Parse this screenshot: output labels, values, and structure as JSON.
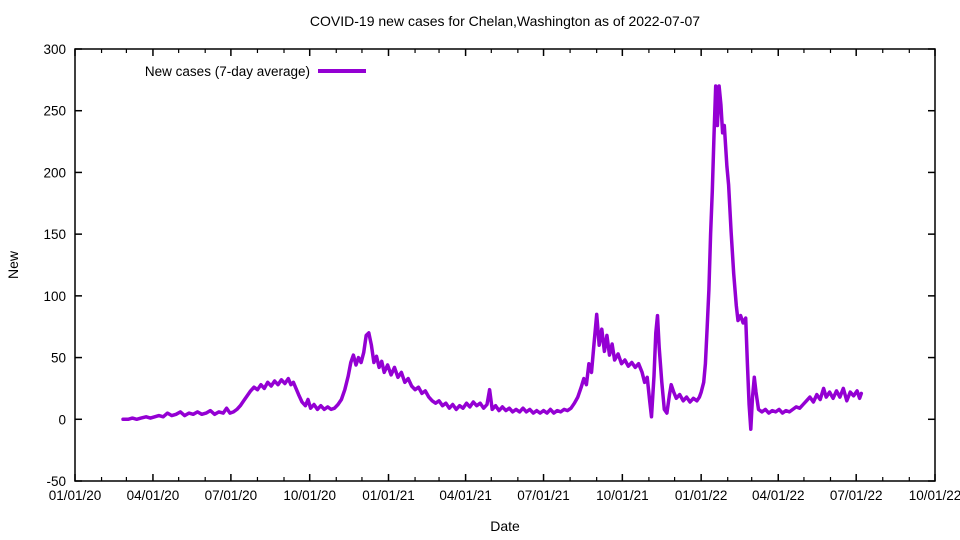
{
  "window": {
    "background": "#ffffff"
  },
  "chart_data": {
    "type": "line",
    "title": "COVID-19 new cases for Chelan,Washington as of 2022-07-07",
    "xlabel": "Date",
    "ylabel": "New",
    "ylim": [
      -50,
      300
    ],
    "y_ticks": [
      -50,
      0,
      50,
      100,
      150,
      200,
      250,
      300
    ],
    "x_axis": {
      "start": "2020-01-01",
      "end": "2022-10-01",
      "major_ticks": [
        {
          "date": "2020-01-01",
          "label": "01/01/20"
        },
        {
          "date": "2020-04-01",
          "label": "04/01/20"
        },
        {
          "date": "2020-07-01",
          "label": "07/01/20"
        },
        {
          "date": "2020-10-01",
          "label": "10/01/20"
        },
        {
          "date": "2021-01-01",
          "label": "01/01/21"
        },
        {
          "date": "2021-04-01",
          "label": "04/01/21"
        },
        {
          "date": "2021-07-01",
          "label": "07/01/21"
        },
        {
          "date": "2021-10-01",
          "label": "10/01/21"
        },
        {
          "date": "2022-01-01",
          "label": "01/01/22"
        },
        {
          "date": "2022-04-01",
          "label": "04/01/22"
        },
        {
          "date": "2022-07-01",
          "label": "07/01/22"
        },
        {
          "date": "2022-10-01",
          "label": "10/01/22"
        }
      ],
      "minor_tick_interval": "month"
    },
    "grid": false,
    "legend": {
      "label": "New cases (7-day average)",
      "position": "top-left-inside"
    },
    "colors": {
      "series": "#9400D3",
      "axis": "#000000",
      "text": "#000000",
      "background": "#ffffff"
    },
    "series": [
      {
        "name": "New cases (7-day average)",
        "color": "#9400D3",
        "points": [
          [
            "2020-02-26",
            0
          ],
          [
            "2020-03-03",
            0
          ],
          [
            "2020-03-08",
            1
          ],
          [
            "2020-03-13",
            0
          ],
          [
            "2020-03-18",
            1
          ],
          [
            "2020-03-24",
            2
          ],
          [
            "2020-03-29",
            1
          ],
          [
            "2020-04-03",
            2
          ],
          [
            "2020-04-08",
            3
          ],
          [
            "2020-04-13",
            2
          ],
          [
            "2020-04-18",
            5
          ],
          [
            "2020-04-23",
            3
          ],
          [
            "2020-04-28",
            4
          ],
          [
            "2020-05-03",
            6
          ],
          [
            "2020-05-08",
            3
          ],
          [
            "2020-05-13",
            5
          ],
          [
            "2020-05-18",
            4
          ],
          [
            "2020-05-23",
            6
          ],
          [
            "2020-05-28",
            4
          ],
          [
            "2020-06-02",
            5
          ],
          [
            "2020-06-07",
            7
          ],
          [
            "2020-06-12",
            4
          ],
          [
            "2020-06-17",
            6
          ],
          [
            "2020-06-22",
            5
          ],
          [
            "2020-06-26",
            9
          ],
          [
            "2020-06-30",
            5
          ],
          [
            "2020-07-04",
            6
          ],
          [
            "2020-07-08",
            8
          ],
          [
            "2020-07-12",
            11
          ],
          [
            "2020-07-16",
            15
          ],
          [
            "2020-07-20",
            19
          ],
          [
            "2020-07-24",
            23
          ],
          [
            "2020-07-28",
            26
          ],
          [
            "2020-08-01",
            24
          ],
          [
            "2020-08-05",
            28
          ],
          [
            "2020-08-09",
            25
          ],
          [
            "2020-08-13",
            30
          ],
          [
            "2020-08-17",
            27
          ],
          [
            "2020-08-21",
            31
          ],
          [
            "2020-08-25",
            28
          ],
          [
            "2020-08-29",
            32
          ],
          [
            "2020-09-02",
            29
          ],
          [
            "2020-09-06",
            33
          ],
          [
            "2020-09-09",
            28
          ],
          [
            "2020-09-12",
            30
          ],
          [
            "2020-09-15",
            25
          ],
          [
            "2020-09-18",
            20
          ],
          [
            "2020-09-22",
            14
          ],
          [
            "2020-09-26",
            11
          ],
          [
            "2020-09-29",
            16
          ],
          [
            "2020-10-02",
            9
          ],
          [
            "2020-10-06",
            12
          ],
          [
            "2020-10-10",
            8
          ],
          [
            "2020-10-14",
            11
          ],
          [
            "2020-10-18",
            8
          ],
          [
            "2020-10-22",
            10
          ],
          [
            "2020-10-26",
            8
          ],
          [
            "2020-10-30",
            9
          ],
          [
            "2020-11-03",
            12
          ],
          [
            "2020-11-07",
            16
          ],
          [
            "2020-11-11",
            24
          ],
          [
            "2020-11-15",
            35
          ],
          [
            "2020-11-18",
            46
          ],
          [
            "2020-11-21",
            52
          ],
          [
            "2020-11-24",
            44
          ],
          [
            "2020-11-27",
            50
          ],
          [
            "2020-11-30",
            46
          ],
          [
            "2020-12-03",
            54
          ],
          [
            "2020-12-06",
            68
          ],
          [
            "2020-12-09",
            70
          ],
          [
            "2020-12-12",
            60
          ],
          [
            "2020-12-15",
            46
          ],
          [
            "2020-12-18",
            51
          ],
          [
            "2020-12-21",
            42
          ],
          [
            "2020-12-24",
            47
          ],
          [
            "2020-12-27",
            38
          ],
          [
            "2020-12-31",
            44
          ],
          [
            "2021-01-04",
            36
          ],
          [
            "2021-01-08",
            42
          ],
          [
            "2021-01-12",
            34
          ],
          [
            "2021-01-16",
            38
          ],
          [
            "2021-01-20",
            30
          ],
          [
            "2021-01-24",
            33
          ],
          [
            "2021-01-28",
            27
          ],
          [
            "2021-02-01",
            24
          ],
          [
            "2021-02-05",
            26
          ],
          [
            "2021-02-09",
            21
          ],
          [
            "2021-02-13",
            23
          ],
          [
            "2021-02-17",
            18
          ],
          [
            "2021-02-21",
            15
          ],
          [
            "2021-02-25",
            13
          ],
          [
            "2021-03-01",
            15
          ],
          [
            "2021-03-05",
            11
          ],
          [
            "2021-03-09",
            13
          ],
          [
            "2021-03-13",
            9
          ],
          [
            "2021-03-17",
            12
          ],
          [
            "2021-03-21",
            8
          ],
          [
            "2021-03-25",
            11
          ],
          [
            "2021-03-29",
            9
          ],
          [
            "2021-04-02",
            13
          ],
          [
            "2021-04-06",
            10
          ],
          [
            "2021-04-10",
            14
          ],
          [
            "2021-04-14",
            11
          ],
          [
            "2021-04-18",
            13
          ],
          [
            "2021-04-22",
            9
          ],
          [
            "2021-04-26",
            12
          ],
          [
            "2021-04-29",
            24
          ],
          [
            "2021-05-02",
            8
          ],
          [
            "2021-05-06",
            11
          ],
          [
            "2021-05-10",
            7
          ],
          [
            "2021-05-14",
            10
          ],
          [
            "2021-05-18",
            7
          ],
          [
            "2021-05-22",
            9
          ],
          [
            "2021-05-26",
            6
          ],
          [
            "2021-05-30",
            8
          ],
          [
            "2021-06-03",
            6
          ],
          [
            "2021-06-07",
            9
          ],
          [
            "2021-06-11",
            6
          ],
          [
            "2021-06-15",
            8
          ],
          [
            "2021-06-19",
            5
          ],
          [
            "2021-06-23",
            7
          ],
          [
            "2021-06-27",
            5
          ],
          [
            "2021-07-01",
            7
          ],
          [
            "2021-07-05",
            5
          ],
          [
            "2021-07-09",
            8
          ],
          [
            "2021-07-13",
            5
          ],
          [
            "2021-07-17",
            7
          ],
          [
            "2021-07-21",
            6
          ],
          [
            "2021-07-25",
            8
          ],
          [
            "2021-07-29",
            7
          ],
          [
            "2021-08-02",
            9
          ],
          [
            "2021-08-06",
            13
          ],
          [
            "2021-08-10",
            18
          ],
          [
            "2021-08-14",
            26
          ],
          [
            "2021-08-17",
            33
          ],
          [
            "2021-08-20",
            28
          ],
          [
            "2021-08-23",
            45
          ],
          [
            "2021-08-26",
            38
          ],
          [
            "2021-08-29",
            62
          ],
          [
            "2021-09-01",
            85
          ],
          [
            "2021-09-04",
            60
          ],
          [
            "2021-09-07",
            73
          ],
          [
            "2021-09-10",
            55
          ],
          [
            "2021-09-13",
            68
          ],
          [
            "2021-09-16",
            52
          ],
          [
            "2021-09-19",
            61
          ],
          [
            "2021-09-22",
            48
          ],
          [
            "2021-09-26",
            53
          ],
          [
            "2021-09-30",
            45
          ],
          [
            "2021-10-04",
            48
          ],
          [
            "2021-10-08",
            43
          ],
          [
            "2021-10-12",
            46
          ],
          [
            "2021-10-16",
            42
          ],
          [
            "2021-10-20",
            45
          ],
          [
            "2021-10-24",
            38
          ],
          [
            "2021-10-27",
            30
          ],
          [
            "2021-10-30",
            34
          ],
          [
            "2021-11-02",
            14
          ],
          [
            "2021-11-04",
            2
          ],
          [
            "2021-11-07",
            35
          ],
          [
            "2021-11-09",
            70
          ],
          [
            "2021-11-11",
            84
          ],
          [
            "2021-11-13",
            58
          ],
          [
            "2021-11-16",
            30
          ],
          [
            "2021-11-19",
            8
          ],
          [
            "2021-11-22",
            5
          ],
          [
            "2021-11-25",
            20
          ],
          [
            "2021-11-27",
            28
          ],
          [
            "2021-11-30",
            22
          ],
          [
            "2021-12-03",
            17
          ],
          [
            "2021-12-07",
            20
          ],
          [
            "2021-12-11",
            15
          ],
          [
            "2021-12-15",
            18
          ],
          [
            "2021-12-19",
            14
          ],
          [
            "2021-12-23",
            17
          ],
          [
            "2021-12-27",
            15
          ],
          [
            "2021-12-30",
            18
          ],
          [
            "2022-01-01",
            22
          ],
          [
            "2022-01-04",
            30
          ],
          [
            "2022-01-06",
            45
          ],
          [
            "2022-01-08",
            75
          ],
          [
            "2022-01-10",
            105
          ],
          [
            "2022-01-12",
            150
          ],
          [
            "2022-01-14",
            185
          ],
          [
            "2022-01-16",
            230
          ],
          [
            "2022-01-18",
            270
          ],
          [
            "2022-01-20",
            238
          ],
          [
            "2022-01-22",
            270
          ],
          [
            "2022-01-24",
            255
          ],
          [
            "2022-01-26",
            232
          ],
          [
            "2022-01-28",
            238
          ],
          [
            "2022-01-31",
            205
          ],
          [
            "2022-02-02",
            190
          ],
          [
            "2022-02-05",
            152
          ],
          [
            "2022-02-08",
            118
          ],
          [
            "2022-02-11",
            92
          ],
          [
            "2022-02-13",
            80
          ],
          [
            "2022-02-16",
            84
          ],
          [
            "2022-02-19",
            78
          ],
          [
            "2022-02-22",
            82
          ],
          [
            "2022-02-24",
            45
          ],
          [
            "2022-02-26",
            12
          ],
          [
            "2022-02-28",
            -8
          ],
          [
            "2022-03-02",
            18
          ],
          [
            "2022-03-04",
            34
          ],
          [
            "2022-03-06",
            22
          ],
          [
            "2022-03-09",
            8
          ],
          [
            "2022-03-13",
            6
          ],
          [
            "2022-03-17",
            8
          ],
          [
            "2022-03-21",
            5
          ],
          [
            "2022-03-25",
            7
          ],
          [
            "2022-03-29",
            6
          ],
          [
            "2022-04-02",
            8
          ],
          [
            "2022-04-06",
            5
          ],
          [
            "2022-04-10",
            7
          ],
          [
            "2022-04-14",
            6
          ],
          [
            "2022-04-18",
            8
          ],
          [
            "2022-04-22",
            10
          ],
          [
            "2022-04-26",
            9
          ],
          [
            "2022-04-30",
            12
          ],
          [
            "2022-05-04",
            15
          ],
          [
            "2022-05-08",
            18
          ],
          [
            "2022-05-12",
            14
          ],
          [
            "2022-05-16",
            20
          ],
          [
            "2022-05-20",
            16
          ],
          [
            "2022-05-24",
            25
          ],
          [
            "2022-05-27",
            18
          ],
          [
            "2022-05-31",
            22
          ],
          [
            "2022-06-04",
            17
          ],
          [
            "2022-06-08",
            23
          ],
          [
            "2022-06-12",
            18
          ],
          [
            "2022-06-16",
            25
          ],
          [
            "2022-06-20",
            15
          ],
          [
            "2022-06-24",
            22
          ],
          [
            "2022-06-28",
            19
          ],
          [
            "2022-07-02",
            23
          ],
          [
            "2022-07-05",
            17
          ],
          [
            "2022-07-07",
            21
          ]
        ]
      }
    ]
  }
}
